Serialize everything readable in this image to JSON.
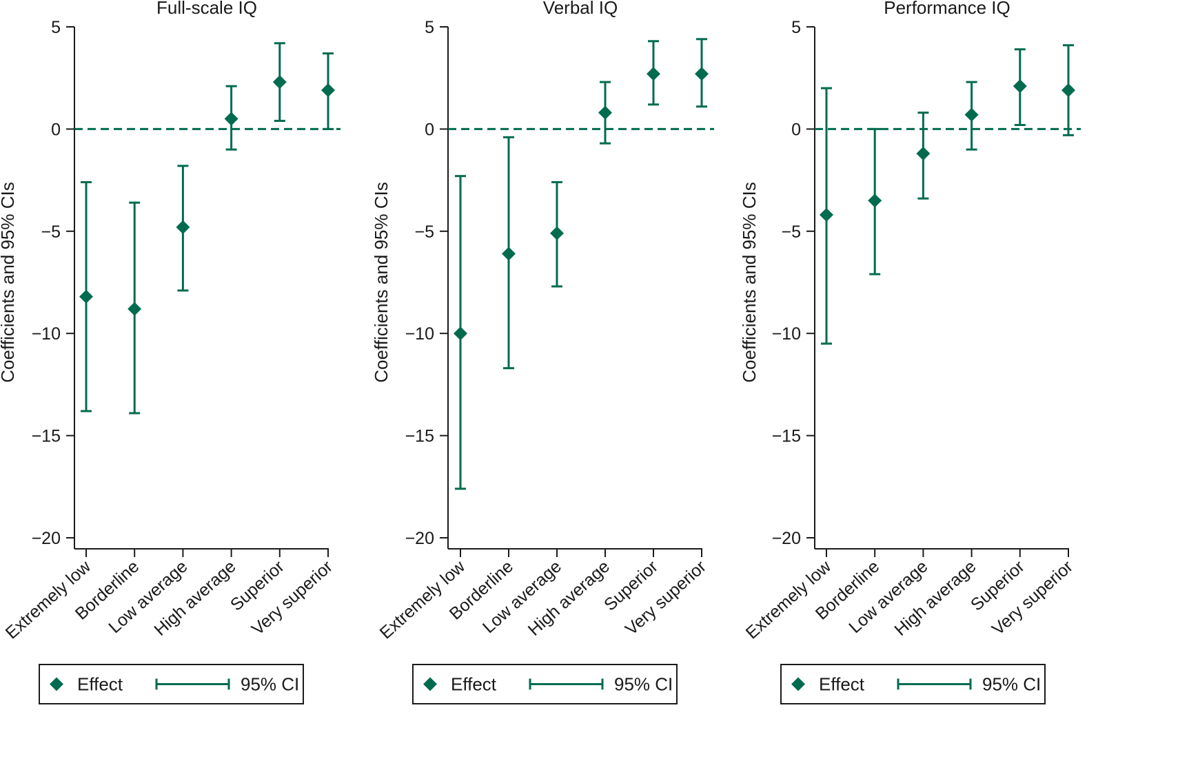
{
  "figure": {
    "accent_color": "#006B4F",
    "axis_color": "#1a1a1a"
  },
  "chart_data": [
    {
      "type": "scatter",
      "title": "Full-scale IQ",
      "ylabel": "Coefficients and 95% CIs",
      "xlabel": "",
      "ylim": [
        -20,
        5
      ],
      "yticks": [
        5,
        0,
        -5,
        -10,
        -15,
        -20
      ],
      "ytick_labels": [
        "5",
        "0",
        "−5",
        "−10",
        "−15",
        "−20"
      ],
      "categories": [
        "Extremely low",
        "Borderline",
        "Low average",
        "High average",
        "Superior",
        "Very superior"
      ],
      "effect": [
        -8.2,
        -8.8,
        -4.8,
        0.5,
        2.3,
        1.9
      ],
      "ci_low": [
        -13.8,
        -13.9,
        -7.9,
        -1.0,
        0.4,
        0.0
      ],
      "ci_high": [
        -2.6,
        -3.6,
        -1.8,
        2.1,
        4.2,
        3.7
      ],
      "reference_line": 0,
      "legend": {
        "effect_label": "Effect",
        "ci_label": "95% CI",
        "position": "bottom"
      }
    },
    {
      "type": "scatter",
      "title": "Verbal IQ",
      "ylabel": "Coefficients and 95% CIs",
      "xlabel": "",
      "ylim": [
        -20,
        5
      ],
      "yticks": [
        5,
        0,
        -5,
        -10,
        -15,
        -20
      ],
      "ytick_labels": [
        "5",
        "0",
        "−5",
        "−10",
        "−15",
        "−20"
      ],
      "categories": [
        "Extremely low",
        "Borderline",
        "Low average",
        "High average",
        "Superior",
        "Very superior"
      ],
      "effect": [
        -10.0,
        -6.1,
        -5.1,
        0.8,
        2.7,
        2.7
      ],
      "ci_low": [
        -17.6,
        -11.7,
        -7.7,
        -0.7,
        1.2,
        1.1
      ],
      "ci_high": [
        -2.3,
        -0.4,
        -2.6,
        2.3,
        4.3,
        4.4
      ],
      "reference_line": 0,
      "legend": {
        "effect_label": "Effect",
        "ci_label": "95% CI",
        "position": "bottom"
      }
    },
    {
      "type": "scatter",
      "title": "Performance IQ",
      "ylabel": "Coefficients and 95% CIs",
      "xlabel": "",
      "ylim": [
        -20,
        5
      ],
      "yticks": [
        5,
        0,
        -5,
        -10,
        -15,
        -20
      ],
      "ytick_labels": [
        "5",
        "0",
        "−5",
        "−10",
        "−15",
        "−20"
      ],
      "categories": [
        "Extremely low",
        "Borderline",
        "Low average",
        "High average",
        "Superior",
        "Very superior"
      ],
      "effect": [
        -4.2,
        -3.5,
        -1.2,
        0.7,
        2.1,
        1.9
      ],
      "ci_low": [
        -10.5,
        -7.1,
        -3.4,
        -1.0,
        0.2,
        -0.3
      ],
      "ci_high": [
        2.0,
        0.0,
        0.8,
        2.3,
        3.9,
        4.1
      ],
      "reference_line": 0,
      "legend": {
        "effect_label": "Effect",
        "ci_label": "95% CI",
        "position": "bottom"
      }
    }
  ]
}
